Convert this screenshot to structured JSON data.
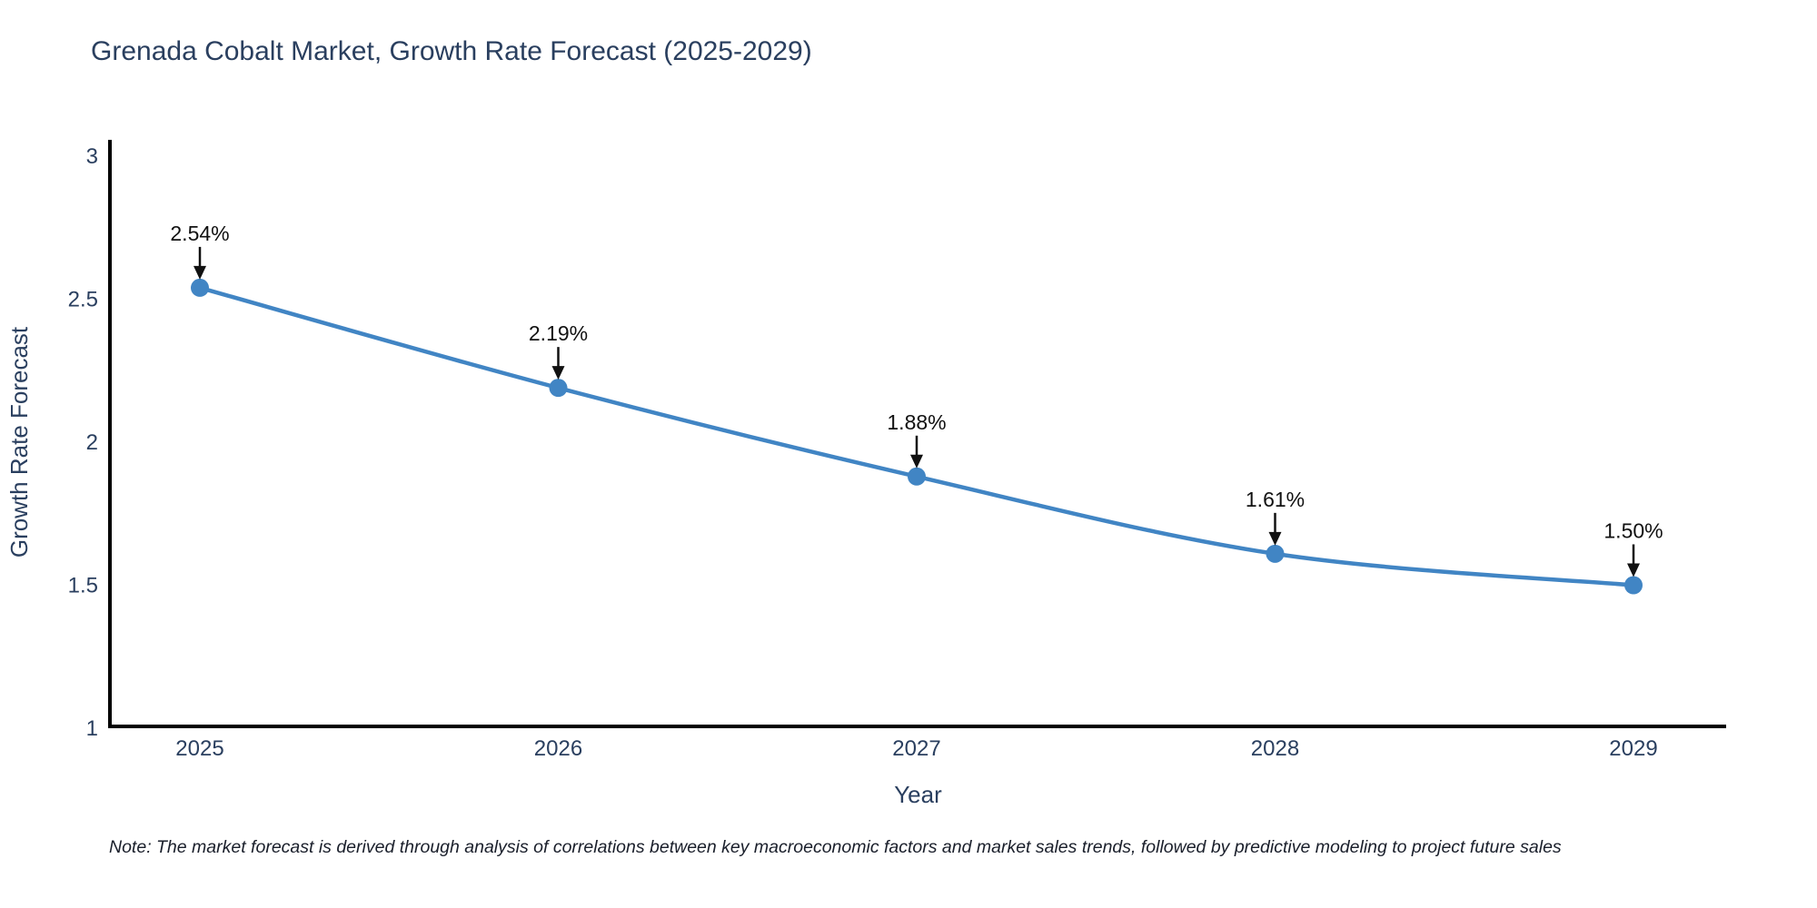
{
  "title": "Grenada Cobalt Market, Growth Rate Forecast (2025-2029)",
  "note": "Note: The market forecast is derived through analysis of correlations between key macroeconomic factors and market sales trends, followed by predictive modeling to project future sales",
  "colors": {
    "line": "#4185c4",
    "marker": "#4185c4",
    "axis": "#000000",
    "tick_text": "#2a3f5f",
    "annotation_text": "#111111",
    "title_text": "#2a3f5f",
    "background": "#ffffff"
  },
  "chart_data": {
    "type": "line",
    "title": "Grenada Cobalt Market, Growth Rate Forecast (2025-2029)",
    "x": [
      2025,
      2026,
      2027,
      2028,
      2029
    ],
    "series": [
      {
        "name": "Growth Rate Forecast",
        "values": [
          2.54,
          2.19,
          1.88,
          1.61,
          1.5
        ]
      }
    ],
    "point_labels": [
      "2.54%",
      "2.19%",
      "1.88%",
      "1.61%",
      "1.50%"
    ],
    "xlabel": "Year",
    "ylabel": "Growth Rate Forecast",
    "ylim": [
      1,
      3
    ],
    "yticks": [
      3,
      2.5,
      2,
      1.5,
      1
    ],
    "xtick_labels": [
      "2025",
      "2026",
      "2027",
      "2028",
      "2029"
    ],
    "line_shape": "spline",
    "grid": false,
    "legend_visible": false,
    "annotations_have_arrows": true
  }
}
